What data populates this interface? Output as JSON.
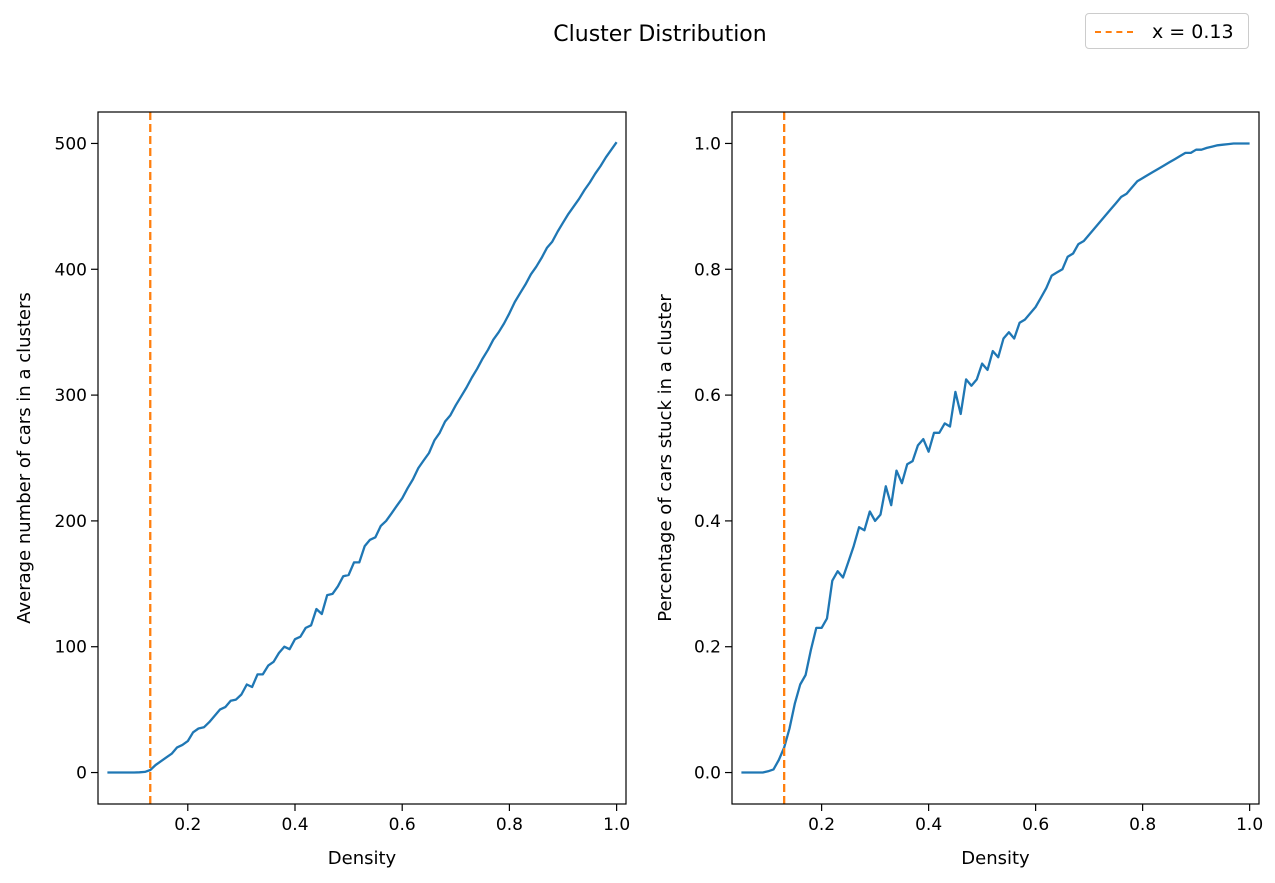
{
  "figure": {
    "title": "Cluster Distribution",
    "legend": {
      "label": "x = 0.13",
      "color": "#ff7f0e",
      "placement": "top-right",
      "line_style": "dashed"
    },
    "line_color": "#1f77b4",
    "vline_color": "#ff7f0e"
  },
  "chart_data": [
    {
      "type": "line",
      "xlabel": "Density",
      "ylabel": "Average number of cars in a clusters",
      "xlim": [
        0.0325,
        1.0175
      ],
      "ylim": [
        -25,
        525
      ],
      "xticks": [
        0.2,
        0.4,
        0.6,
        0.8,
        1.0
      ],
      "xtick_labels": [
        "0.2",
        "0.4",
        "0.6",
        "0.8",
        "1.0"
      ],
      "yticks": [
        0,
        100,
        200,
        300,
        400,
        500
      ],
      "ytick_labels": [
        "0",
        "100",
        "200",
        "300",
        "400",
        "500"
      ],
      "vline": 0.13,
      "grid": false,
      "series": [
        {
          "x": [
            0.05,
            0.06,
            0.07,
            0.08,
            0.09,
            0.1,
            0.11,
            0.12,
            0.13,
            0.14,
            0.15,
            0.16,
            0.17,
            0.18,
            0.19,
            0.2,
            0.21,
            0.22,
            0.23,
            0.24,
            0.25,
            0.26,
            0.27,
            0.28,
            0.29,
            0.3,
            0.31,
            0.32,
            0.33,
            0.34,
            0.35,
            0.36,
            0.37,
            0.38,
            0.39,
            0.4,
            0.41,
            0.42,
            0.43,
            0.44,
            0.45,
            0.46,
            0.47,
            0.48,
            0.49,
            0.5,
            0.51,
            0.52,
            0.53,
            0.54,
            0.55,
            0.56,
            0.57,
            0.58,
            0.59,
            0.6,
            0.61,
            0.62,
            0.63,
            0.64,
            0.65,
            0.66,
            0.67,
            0.68,
            0.69,
            0.7,
            0.71,
            0.72,
            0.73,
            0.74,
            0.75,
            0.76,
            0.77,
            0.78,
            0.79,
            0.8,
            0.81,
            0.82,
            0.83,
            0.84,
            0.85,
            0.86,
            0.87,
            0.88,
            0.89,
            0.9,
            0.91,
            0.92,
            0.93,
            0.94,
            0.95,
            0.96,
            0.97,
            0.98,
            0.99,
            1.0
          ],
          "y": [
            0,
            0,
            0,
            0,
            0,
            0,
            0.2,
            0.5,
            2,
            6,
            9,
            12,
            15,
            20,
            22,
            25,
            32,
            35,
            36,
            40,
            45,
            50,
            52,
            57,
            58,
            62,
            70,
            68,
            78,
            78,
            85,
            88,
            95,
            100,
            98,
            106,
            108,
            115,
            117,
            130,
            126,
            141,
            142,
            148,
            156,
            157,
            167,
            167,
            180,
            185,
            187,
            196,
            200,
            206,
            212,
            218,
            226,
            233,
            242,
            248,
            254,
            264,
            270,
            279,
            284,
            292,
            299,
            306,
            314,
            321,
            329,
            336,
            344,
            350,
            357,
            365,
            374,
            381,
            388,
            396,
            402,
            409,
            417,
            422,
            430,
            437,
            444,
            450,
            456,
            463,
            469,
            476,
            482,
            489,
            495,
            501
          ]
        }
      ]
    },
    {
      "type": "line",
      "xlabel": "Density",
      "ylabel": "Percentage of cars stuck in a cluster",
      "xlim": [
        0.0325,
        1.0175
      ],
      "ylim": [
        -0.05,
        1.05
      ],
      "xticks": [
        0.2,
        0.4,
        0.6,
        0.8,
        1.0
      ],
      "xtick_labels": [
        "0.2",
        "0.4",
        "0.6",
        "0.8",
        "1.0"
      ],
      "yticks": [
        0.0,
        0.2,
        0.4,
        0.6,
        0.8,
        1.0
      ],
      "ytick_labels": [
        "0.0",
        "0.2",
        "0.4",
        "0.6",
        "0.8",
        "1.0"
      ],
      "vline": 0.13,
      "grid": false,
      "series": [
        {
          "x": [
            0.05,
            0.06,
            0.07,
            0.08,
            0.09,
            0.1,
            0.11,
            0.12,
            0.13,
            0.14,
            0.15,
            0.16,
            0.17,
            0.18,
            0.19,
            0.2,
            0.21,
            0.22,
            0.23,
            0.24,
            0.25,
            0.26,
            0.27,
            0.28,
            0.29,
            0.3,
            0.31,
            0.32,
            0.33,
            0.34,
            0.35,
            0.36,
            0.37,
            0.38,
            0.39,
            0.4,
            0.41,
            0.42,
            0.43,
            0.44,
            0.45,
            0.46,
            0.47,
            0.48,
            0.49,
            0.5,
            0.51,
            0.52,
            0.53,
            0.54,
            0.55,
            0.56,
            0.57,
            0.58,
            0.59,
            0.6,
            0.61,
            0.62,
            0.63,
            0.64,
            0.65,
            0.66,
            0.67,
            0.68,
            0.69,
            0.7,
            0.71,
            0.72,
            0.73,
            0.74,
            0.75,
            0.76,
            0.77,
            0.78,
            0.79,
            0.8,
            0.81,
            0.82,
            0.83,
            0.84,
            0.85,
            0.86,
            0.87,
            0.88,
            0.89,
            0.9,
            0.91,
            0.92,
            0.93,
            0.94,
            0.95,
            0.96,
            0.97,
            0.98,
            0.99,
            1.0
          ],
          "y": [
            0,
            0,
            0,
            0,
            0,
            0.002,
            0.005,
            0.02,
            0.04,
            0.07,
            0.11,
            0.14,
            0.155,
            0.195,
            0.23,
            0.23,
            0.245,
            0.305,
            0.32,
            0.31,
            0.335,
            0.36,
            0.39,
            0.385,
            0.415,
            0.4,
            0.41,
            0.455,
            0.425,
            0.48,
            0.46,
            0.49,
            0.495,
            0.52,
            0.53,
            0.51,
            0.54,
            0.54,
            0.555,
            0.55,
            0.605,
            0.57,
            0.625,
            0.615,
            0.625,
            0.65,
            0.64,
            0.67,
            0.66,
            0.69,
            0.7,
            0.69,
            0.715,
            0.72,
            0.73,
            0.74,
            0.755,
            0.77,
            0.79,
            0.795,
            0.8,
            0.82,
            0.825,
            0.84,
            0.845,
            0.855,
            0.865,
            0.875,
            0.885,
            0.895,
            0.905,
            0.915,
            0.92,
            0.93,
            0.94,
            0.945,
            0.95,
            0.955,
            0.96,
            0.965,
            0.97,
            0.975,
            0.98,
            0.985,
            0.985,
            0.99,
            0.99,
            0.993,
            0.995,
            0.997,
            0.998,
            0.999,
            1.0,
            1.0,
            1.0,
            1.0
          ]
        }
      ]
    }
  ]
}
